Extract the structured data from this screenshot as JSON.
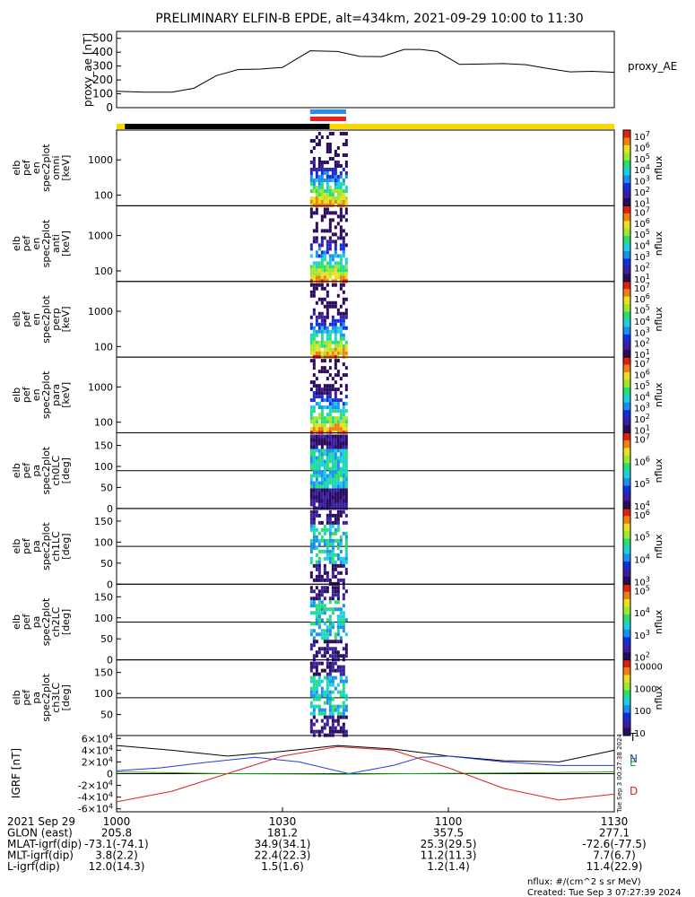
{
  "title": "PRELIMINARY ELFIN-B EPDE, alt=434km, 2021-09-29 10:00 to 11:30",
  "colors": {
    "state_black": "#000000",
    "state_yellow": "#f8d800",
    "bar_blue": "#2a8cf0",
    "bar_red": "#e82020",
    "igrf_T": "#000000",
    "igrf_N": "#1f3de0",
    "igrf_E": "#1aa81a",
    "igrf_D": "#e02020"
  },
  "chart_data": [
    {
      "id": "proxy_ae",
      "type": "line",
      "ylabel": "proxy_ae [nT]",
      "legend_label": "proxy_AE",
      "ylim": [
        0,
        550
      ],
      "yticks": [
        "500",
        "400",
        "300",
        "200",
        "100",
        "0"
      ],
      "ytick_values": [
        500,
        400,
        300,
        200,
        100,
        0
      ],
      "x_minutes": [
        0,
        5,
        10,
        14,
        18,
        22,
        26,
        30,
        35,
        40,
        44,
        48,
        52,
        55,
        58,
        62,
        66,
        70,
        74,
        78,
        82,
        86,
        90
      ],
      "values": [
        118,
        112,
        112,
        140,
        230,
        275,
        278,
        290,
        410,
        405,
        370,
        368,
        420,
        420,
        405,
        312,
        315,
        318,
        310,
        282,
        258,
        262,
        255
      ]
    },
    {
      "id": "spectrograms",
      "type": "heatmap",
      "panels": [
        {
          "ylabel": [
            "elb",
            "pef",
            "en",
            "spec2plot",
            "omni",
            "[keV]"
          ],
          "yticks": [
            "1000",
            "100"
          ],
          "log": true,
          "cbar_ticks": [
            "10^7",
            "10^6",
            "10^5",
            "10^4",
            "10^3",
            "10^2",
            "10^1"
          ],
          "cbar_label": "nflux"
        },
        {
          "ylabel": [
            "elb",
            "pef",
            "en",
            "spec2plot",
            "anti",
            "[keV]"
          ],
          "yticks": [
            "1000",
            "100"
          ],
          "log": true,
          "cbar_ticks": [
            "10^7",
            "10^6",
            "10^5",
            "10^4",
            "10^3",
            "10^2",
            "10^1"
          ],
          "cbar_label": "nflux"
        },
        {
          "ylabel": [
            "elb",
            "pef",
            "en",
            "spec2plot",
            "perp",
            "[keV]"
          ],
          "yticks": [
            "1000",
            "100"
          ],
          "log": true,
          "cbar_ticks": [
            "10^7",
            "10^6",
            "10^5",
            "10^4",
            "10^3",
            "10^2",
            "10^1"
          ],
          "cbar_label": "nflux"
        },
        {
          "ylabel": [
            "elb",
            "pef",
            "en",
            "spec2plot",
            "para",
            "[keV]"
          ],
          "yticks": [
            "1000",
            "100"
          ],
          "log": true,
          "cbar_ticks": [
            "10^7",
            "10^6",
            "10^5",
            "10^4",
            "10^3",
            "10^2",
            "10^1"
          ],
          "cbar_label": "nflux"
        },
        {
          "ylabel": [
            "elb",
            "pef",
            "pa",
            "spec2plot",
            "ch0LC",
            "[deg]"
          ],
          "yticks": [
            "150",
            "100",
            "50",
            "0"
          ],
          "log": false,
          "cbar_ticks": [
            "10^7",
            "10^6",
            "10^5",
            "10^4"
          ],
          "cbar_label": "nflux"
        },
        {
          "ylabel": [
            "elb",
            "pef",
            "pa",
            "spec2plot",
            "ch1LC",
            "[deg]"
          ],
          "yticks": [
            "150",
            "100",
            "50",
            "0"
          ],
          "log": false,
          "cbar_ticks": [
            "10^6",
            "10^5",
            "10^4",
            "10^3"
          ],
          "cbar_label": "nflux"
        },
        {
          "ylabel": [
            "elb",
            "pef",
            "pa",
            "spec2plot",
            "ch2LC",
            "[deg]"
          ],
          "yticks": [
            "150",
            "100",
            "50",
            "0"
          ],
          "log": false,
          "cbar_ticks": [
            "10^5",
            "10^4",
            "10^3",
            "10^2"
          ],
          "cbar_label": "nflux"
        },
        {
          "ylabel": [
            "elb",
            "pef",
            "pa",
            "spec2plot",
            "ch3LC",
            "[deg]"
          ],
          "yticks": [
            "150",
            "100",
            "50"
          ],
          "log": false,
          "cbar_ticks": [
            "10000",
            "1000",
            "100",
            "10"
          ],
          "cbar_label": "nflux"
        }
      ]
    },
    {
      "id": "igrf",
      "type": "line",
      "ylabel": "IGRF [nT]",
      "ylim": [
        -65000,
        65000
      ],
      "yticks": [
        "6×10^4",
        "4×10^4",
        "2×10^4",
        "0",
        "-2×10^4",
        "-4×10^4",
        "-6×10^4"
      ],
      "ytick_values": [
        60000,
        40000,
        20000,
        0,
        -20000,
        -40000,
        -60000
      ],
      "series": [
        {
          "name": "T",
          "x_minutes": [
            0,
            10,
            20,
            30,
            40,
            50,
            60,
            70,
            80,
            90
          ],
          "values": [
            48000,
            40000,
            30000,
            38000,
            48000,
            42000,
            30000,
            22000,
            20000,
            40000
          ]
        },
        {
          "name": "N",
          "x_minutes": [
            0,
            8,
            15,
            25,
            33,
            42,
            50,
            55,
            60,
            70,
            80,
            90
          ],
          "values": [
            5000,
            10000,
            18000,
            28000,
            20000,
            0,
            14000,
            28000,
            30000,
            20000,
            14000,
            14000
          ]
        },
        {
          "name": "E",
          "x_minutes": [
            0,
            20,
            40,
            60,
            80,
            90
          ],
          "values": [
            3000,
            0,
            -1000,
            500,
            2000,
            3000
          ]
        },
        {
          "name": "D",
          "x_minutes": [
            0,
            10,
            20,
            30,
            40,
            50,
            60,
            70,
            80,
            90
          ],
          "values": [
            -48000,
            -30000,
            0,
            30000,
            46000,
            40000,
            10000,
            -25000,
            -45000,
            -35000
          ]
        }
      ]
    }
  ],
  "xaxis": {
    "rows": [
      {
        "label": "2021 Sep 29",
        "values": [
          "1000",
          "1030",
          "1100",
          "1130"
        ]
      },
      {
        "label": "GLON (east)",
        "values": [
          "205.8",
          "181.2",
          "357.5",
          "277.1"
        ]
      },
      {
        "label": "MLAT-igrf(dip)",
        "values": [
          "-73.1(-74.1)",
          "34.9(34.1)",
          "25.3(29.5)",
          "-72.6(-77.5)"
        ]
      },
      {
        "label": "MLT-igrf(dip)",
        "values": [
          "3.8(2.2)",
          "22.4(22.3)",
          "11.2(11.3)",
          "7.7(6.7)"
        ]
      },
      {
        "label": "L-igrf(dip)",
        "values": [
          "12.0(14.3)",
          "1.5(1.6)",
          "1.2(1.4)",
          "11.4(22.9)"
        ]
      }
    ]
  },
  "footer": {
    "units": "nflux: #/(cm^2 s sr MeV)",
    "created": "Created: Tue Sep  3 07:27:39 2024"
  },
  "side_stamp": "Tue Sep  3 00:27:38 2024"
}
